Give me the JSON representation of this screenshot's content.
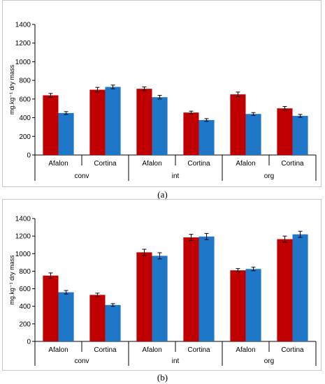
{
  "colors": {
    "series1": "#c00000",
    "series2": "#1f77c8",
    "axis": "#000000"
  },
  "captions": {
    "a": "(a)",
    "b": "(b)"
  },
  "chart_data": [
    {
      "type": "bar",
      "id": "a",
      "ylabel": "mg.kg⁻¹ dry mass",
      "ylim": [
        0,
        1400
      ],
      "yticks": [
        0,
        200,
        400,
        600,
        800,
        1000,
        1200,
        1400
      ],
      "grid": false,
      "legend": "none",
      "categories": [
        "Afalon",
        "Cortina",
        "Afalon",
        "Cortina",
        "Afalon",
        "Cortina"
      ],
      "groups": [
        "conv",
        "int",
        "org"
      ],
      "series": [
        {
          "values": [
            640,
            700,
            710,
            455,
            650,
            500
          ],
          "errors": [
            20,
            25,
            20,
            15,
            25,
            20
          ]
        },
        {
          "values": [
            450,
            730,
            620,
            375,
            440,
            420
          ],
          "errors": [
            15,
            20,
            20,
            15,
            15,
            15
          ]
        }
      ]
    },
    {
      "type": "bar",
      "id": "b",
      "ylabel": "mg.kg⁻¹ dry mass",
      "ylim": [
        0,
        1400
      ],
      "yticks": [
        0,
        200,
        400,
        600,
        800,
        1000,
        1200,
        1400
      ],
      "grid": false,
      "legend": "none",
      "categories": [
        "Afalon",
        "Cortina",
        "Afalon",
        "Cortina",
        "Afalon",
        "Cortina"
      ],
      "groups": [
        "conv",
        "int",
        "org"
      ],
      "series": [
        {
          "values": [
            750,
            530,
            1015,
            1185,
            810,
            1165
          ],
          "errors": [
            30,
            20,
            35,
            35,
            20,
            35
          ]
        },
        {
          "values": [
            560,
            415,
            975,
            1195,
            825,
            1220
          ],
          "errors": [
            20,
            15,
            35,
            35,
            20,
            35
          ]
        }
      ]
    }
  ]
}
